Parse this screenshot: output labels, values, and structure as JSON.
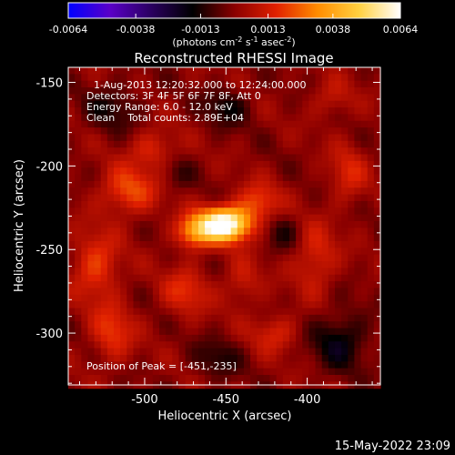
{
  "colorbar": {
    "ticks": [
      "-0.0064",
      "-0.0038",
      "-0.0013",
      "0.0013",
      "0.0038",
      "0.0064"
    ],
    "tick_values": [
      -0.0064,
      -0.0038,
      -0.0013,
      0.0013,
      0.0038,
      0.0064
    ],
    "range": [
      -0.0064,
      0.0064
    ],
    "units_main": "(photons cm",
    "units_exp1": "-2",
    "units_mid": " s",
    "units_exp2": "-1",
    "units_tail": " asec",
    "units_exp3": "-2",
    "units_close": ")",
    "colors": [
      "#0000ff",
      "#5a00c8",
      "#2a0060",
      "#000000",
      "#8a0000",
      "#e02000",
      "#ff8c00",
      "#ffd040",
      "#ffffff"
    ]
  },
  "plot": {
    "title": "Reconstructed RHESSI Image",
    "xlabel": "Heliocentric X (arcsec)",
    "ylabel": "Heliocentric Y (arcsec)",
    "info_line1": "1-Aug-2013 12:20:32.000 to 12:24:00.000",
    "info_line2": "Detectors: 3F 4F 5F 6F 7F 8F, Att 0",
    "info_line3": "Energy Range: 6.0 - 12.0 keV",
    "info_line4": "Clean    Total counts: 2.89E+04",
    "peak_text": "Position of Peak = [-451,-235]"
  },
  "chart_data": {
    "type": "heatmap",
    "title": "Reconstructed RHESSI Image",
    "xlabel": "Heliocentric X (arcsec)",
    "ylabel": "Heliocentric Y (arcsec)",
    "xlim": [
      -547,
      -355
    ],
    "ylim": [
      -331,
      -141
    ],
    "xticks": [
      -500,
      -450,
      -400
    ],
    "yticks": [
      -150,
      -200,
      -250,
      -300
    ],
    "xtick_labels": [
      "-500",
      "-450",
      "-400"
    ],
    "ytick_labels": [
      "-150",
      "-200",
      "-250",
      "-300"
    ],
    "colorbar_range": [
      -0.0064,
      0.0064
    ],
    "peak": {
      "x": -451,
      "y": -235,
      "value": 0.0064
    },
    "sources": [
      {
        "x": -451,
        "y": -235,
        "sx": 11,
        "sy": 7,
        "amp": 0.0072
      },
      {
        "x": -470,
        "y": -240,
        "sx": 8,
        "sy": 7,
        "amp": 0.0028
      },
      {
        "x": -430,
        "y": -222,
        "sx": 9,
        "sy": 8,
        "amp": 0.002
      },
      {
        "x": -510,
        "y": -215,
        "sx": 12,
        "sy": 10,
        "amp": 0.0022
      },
      {
        "x": -495,
        "y": -190,
        "sx": 10,
        "sy": 8,
        "amp": 0.0015
      },
      {
        "x": -530,
        "y": -260,
        "sx": 10,
        "sy": 14,
        "amp": 0.002
      },
      {
        "x": -520,
        "y": -300,
        "sx": 9,
        "sy": 12,
        "amp": 0.0018
      },
      {
        "x": -475,
        "y": -275,
        "sx": 10,
        "sy": 10,
        "amp": 0.0016
      },
      {
        "x": -440,
        "y": -270,
        "sx": 8,
        "sy": 10,
        "amp": 0.0012
      },
      {
        "x": -420,
        "y": -300,
        "sx": 10,
        "sy": 8,
        "amp": 0.0014
      },
      {
        "x": -395,
        "y": -255,
        "sx": 9,
        "sy": 14,
        "amp": 0.0016
      },
      {
        "x": -375,
        "y": -205,
        "sx": 8,
        "sy": 12,
        "amp": 0.0014
      },
      {
        "x": -385,
        "y": -160,
        "sx": 9,
        "sy": 8,
        "amp": 0.001
      },
      {
        "x": -450,
        "y": -165,
        "sx": 10,
        "sy": 8,
        "amp": -0.0014
      },
      {
        "x": -520,
        "y": -165,
        "sx": 12,
        "sy": 10,
        "amp": -0.0012
      },
      {
        "x": -380,
        "y": -305,
        "sx": 12,
        "sy": 12,
        "amp": -0.0018
      },
      {
        "x": -455,
        "y": -315,
        "sx": 10,
        "sy": 8,
        "amp": -0.0012
      },
      {
        "x": -415,
        "y": -240,
        "sx": 8,
        "sy": 8,
        "amp": -0.001
      },
      {
        "x": -480,
        "y": -205,
        "sx": 7,
        "sy": 7,
        "amp": -0.0008
      }
    ]
  },
  "footer": {
    "timestamp": "15-May-2022 23:09"
  }
}
